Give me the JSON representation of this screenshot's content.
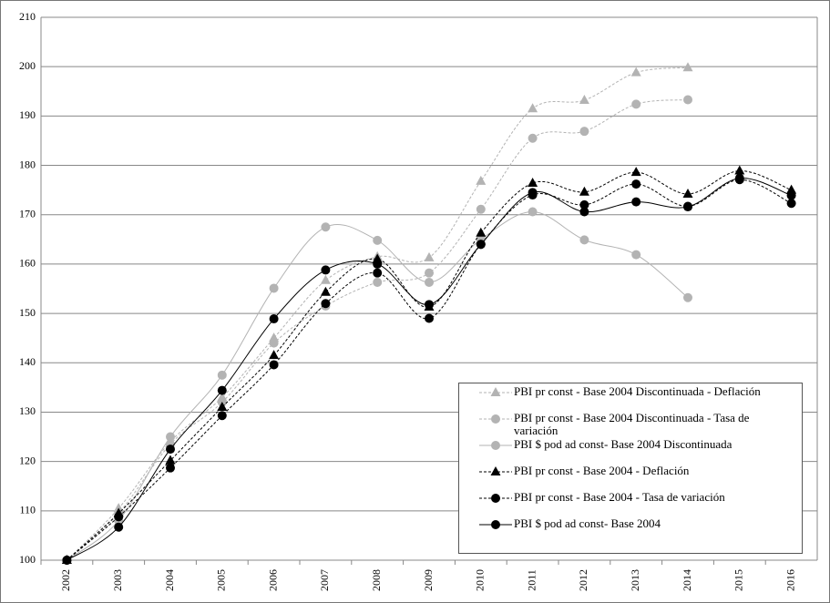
{
  "chart_data": {
    "type": "line",
    "categories": [
      "2002",
      "2003",
      "2004",
      "2005",
      "2006",
      "2007",
      "2008",
      "2009",
      "2010",
      "2011",
      "2012",
      "2013",
      "2014",
      "2015",
      "2016"
    ],
    "ylim": [
      100,
      210
    ],
    "yticks": [
      100,
      110,
      120,
      130,
      140,
      150,
      160,
      170,
      180,
      190,
      200,
      210
    ],
    "grid": true,
    "smooth": true,
    "series": [
      {
        "name": "PBI pr const - Base 2004 Discontinuada - Deflación",
        "color": "#b3b3b3",
        "marker": "triangle",
        "dashed": true,
        "values": [
          100,
          110.5,
          124,
          133,
          145,
          156.7,
          161.5,
          161.3,
          176.8,
          191.5,
          193.2,
          198.8,
          199.8,
          null,
          null
        ]
      },
      {
        "name": "PBI pr const - Base 2004 Discontinuada - Tasa de variación",
        "color": "#b3b3b3",
        "marker": "circle",
        "dashed": true,
        "values": [
          100,
          109.5,
          123.5,
          132,
          144,
          151.5,
          156.3,
          158.2,
          171.1,
          185.5,
          186.9,
          192.4,
          193.3,
          null,
          null
        ]
      },
      {
        "name": "PBI $ pod ad const- Base 2004 Discontinuada",
        "color": "#b3b3b3",
        "marker": "circle",
        "dashed": false,
        "values": [
          100,
          108,
          125,
          137.5,
          155.1,
          167.5,
          164.8,
          156.3,
          165,
          170.6,
          164.9,
          161.9,
          153.2,
          null,
          null
        ]
      },
      {
        "name": "PBI pr const - Base 2004 - Deflación",
        "color": "#000000",
        "marker": "triangle",
        "dashed": true,
        "values": [
          100,
          109.5,
          120.2,
          131,
          141.5,
          154.3,
          161,
          151.3,
          166.3,
          176.4,
          174.6,
          178.6,
          174.2,
          178.9,
          175
        ]
      },
      {
        "name": "PBI pr const - Base 2004 - Tasa de variación",
        "color": "#000000",
        "marker": "circle",
        "dashed": true,
        "values": [
          100,
          108.8,
          118.7,
          129.3,
          139.6,
          152,
          158.2,
          149,
          164,
          174,
          172,
          176.2,
          171.7,
          177.1,
          172.3
        ]
      },
      {
        "name": "PBI $ pod ad const- Base 2004",
        "color": "#000000",
        "marker": "circle",
        "dashed": false,
        "values": [
          100,
          106.7,
          122.5,
          134.4,
          148.9,
          158.8,
          160,
          151.8,
          164,
          174.5,
          170.6,
          172.6,
          171.6,
          177.4,
          173.9
        ]
      }
    ]
  }
}
